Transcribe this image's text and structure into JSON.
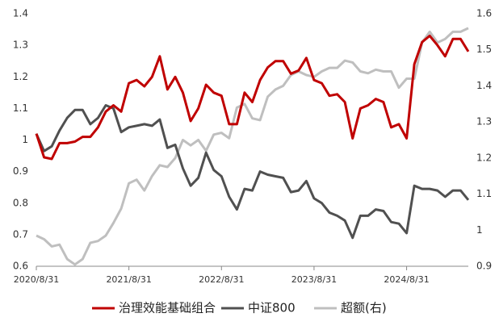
{
  "chart_data": {
    "type": "line",
    "categories": [
      "2020/8/31",
      null,
      null,
      null,
      null,
      null,
      null,
      null,
      null,
      null,
      null,
      null,
      "2021/8/31",
      null,
      null,
      null,
      null,
      null,
      null,
      null,
      null,
      null,
      null,
      null,
      "2022/8/31",
      null,
      null,
      null,
      null,
      null,
      null,
      null,
      null,
      null,
      null,
      null,
      "2023/8/31",
      null,
      null,
      null,
      null,
      null,
      null,
      null,
      null,
      null,
      null,
      null,
      "2024/8/31",
      null,
      null,
      null,
      null,
      null,
      null,
      null,
      null
    ],
    "series": [
      {
        "name": "治理效能基础组合",
        "color": "#c00000",
        "values": [
          1.02,
          0.945,
          0.94,
          0.99,
          0.99,
          0.995,
          1.01,
          1.01,
          1.04,
          1.09,
          1.11,
          1.09,
          1.18,
          1.19,
          1.17,
          1.2,
          1.265,
          1.16,
          1.2,
          1.15,
          1.06,
          1.1,
          1.175,
          1.15,
          1.14,
          1.05,
          1.05,
          1.15,
          1.12,
          1.19,
          1.23,
          1.25,
          1.25,
          1.21,
          1.22,
          1.26,
          1.19,
          1.18,
          1.14,
          1.145,
          1.12,
          1.005,
          1.1,
          1.11,
          1.13,
          1.12,
          1.04,
          1.05,
          1.005,
          1.24,
          1.31,
          1.33,
          1.3,
          1.265,
          1.32,
          1.32,
          1.28
        ]
      },
      {
        "name": "中证800",
        "color": "#505050",
        "values": [
          1.02,
          0.965,
          0.98,
          1.03,
          1.07,
          1.095,
          1.095,
          1.05,
          1.07,
          1.11,
          1.1,
          1.025,
          1.04,
          1.045,
          1.05,
          1.045,
          1.065,
          0.975,
          0.985,
          0.91,
          0.855,
          0.88,
          0.96,
          0.905,
          0.885,
          0.82,
          0.78,
          0.845,
          0.84,
          0.9,
          0.89,
          0.885,
          0.88,
          0.835,
          0.84,
          0.87,
          0.815,
          0.8,
          0.77,
          0.76,
          0.745,
          0.69,
          0.76,
          0.76,
          0.78,
          0.775,
          0.74,
          0.735,
          0.705,
          0.855,
          0.845,
          0.845,
          0.84,
          0.82,
          0.84,
          0.84,
          0.81
        ]
      },
      {
        "name": "超额(右)",
        "color": "#bfbfbf",
        "axis": "y2",
        "values": [
          0.985,
          0.975,
          0.955,
          0.96,
          0.92,
          0.905,
          0.92,
          0.965,
          0.97,
          0.985,
          1.02,
          1.06,
          1.13,
          1.14,
          1.11,
          1.15,
          1.18,
          1.175,
          1.2,
          1.25,
          1.235,
          1.25,
          1.22,
          1.265,
          1.27,
          1.255,
          1.34,
          1.35,
          1.31,
          1.305,
          1.37,
          1.39,
          1.4,
          1.43,
          1.44,
          1.43,
          1.425,
          1.44,
          1.45,
          1.45,
          1.47,
          1.465,
          1.44,
          1.435,
          1.445,
          1.44,
          1.44,
          1.395,
          1.42,
          1.42,
          1.52,
          1.55,
          1.52,
          1.53,
          1.55,
          1.55,
          1.56
        ]
      }
    ],
    "ylim": [
      0.6,
      1.4
    ],
    "yticks": [
      0.6,
      0.7,
      0.8,
      0.9,
      1,
      1.1,
      1.2,
      1.3,
      1.4
    ],
    "y2lim": [
      0.9,
      1.6
    ],
    "y2ticks": [
      0.9,
      1,
      1.1,
      1.2,
      1.3,
      1.4,
      1.5,
      1.6
    ],
    "legend": "bottom"
  }
}
